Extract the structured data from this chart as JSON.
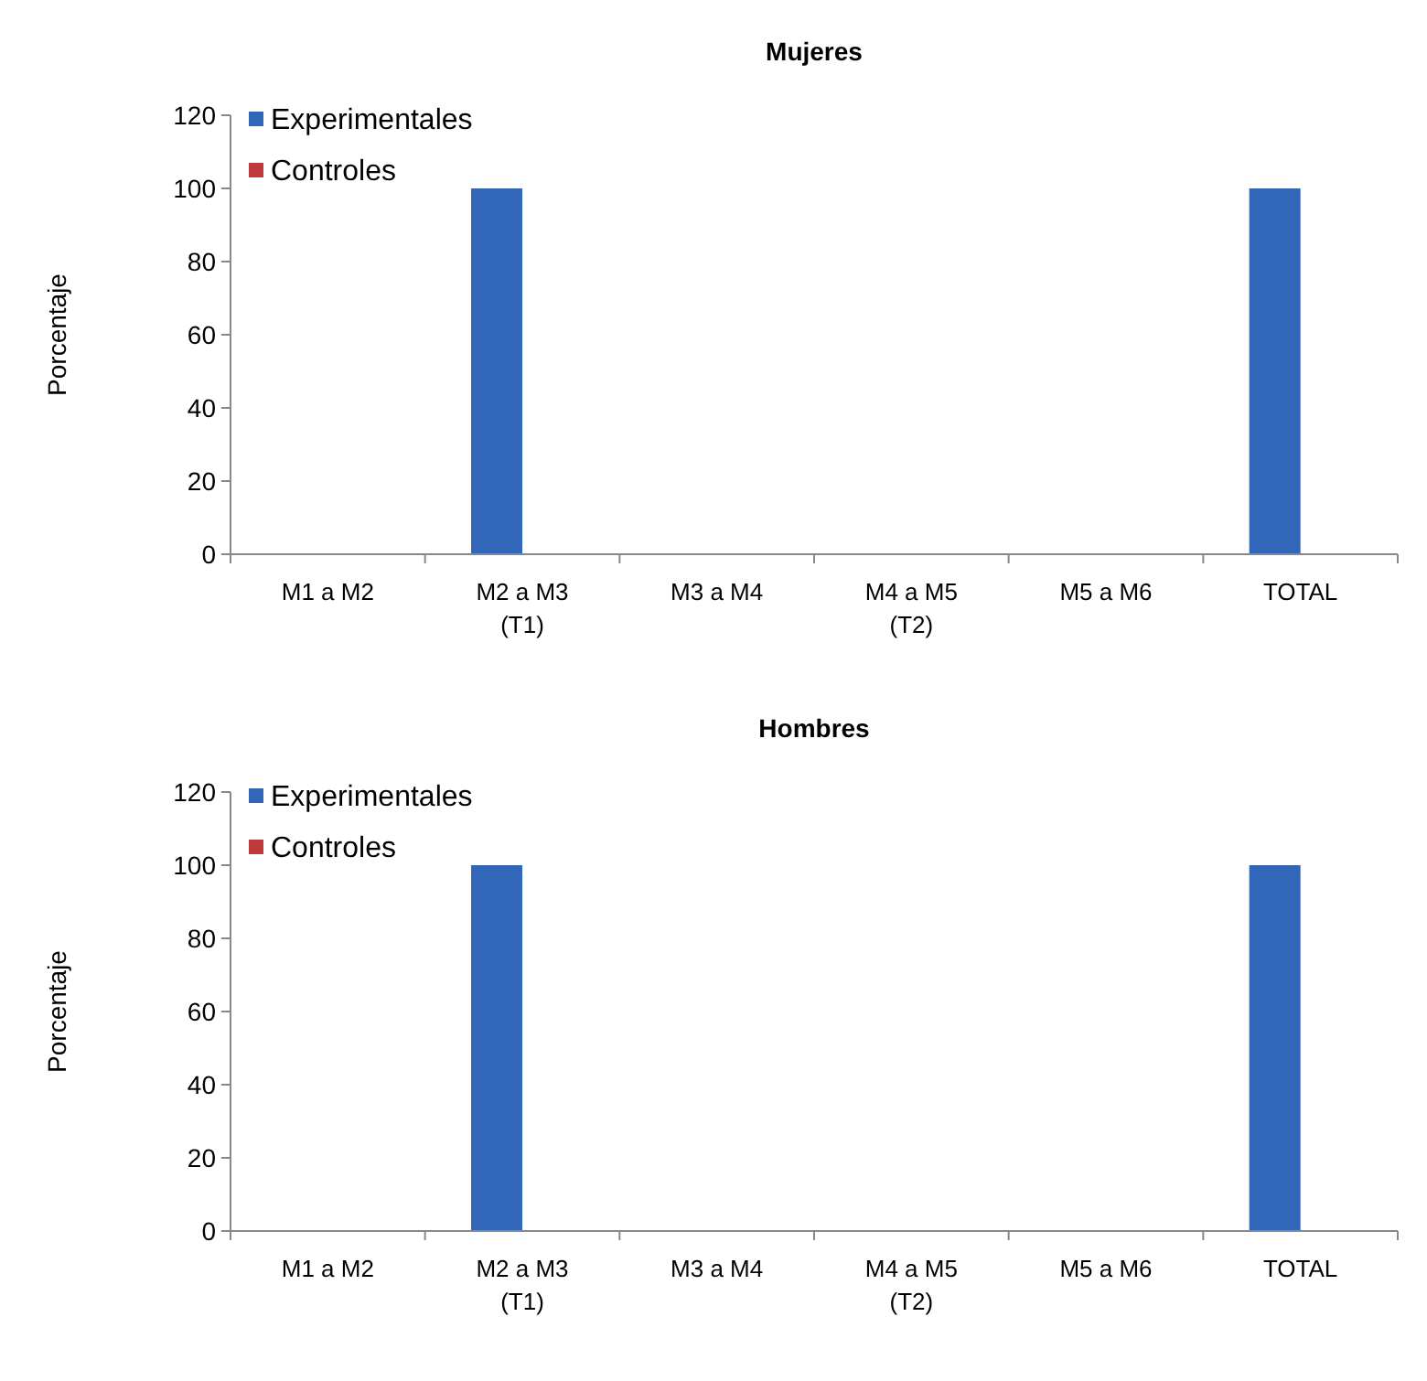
{
  "chart_data": [
    {
      "type": "bar",
      "title": "Mujeres",
      "ylabel": "Porcentaje",
      "categories": [
        "M1 a M2",
        "M2 a M3\n(T1)",
        "M3 a M4",
        "M4 a M5\n(T2)",
        "M5 a M6",
        "TOTAL"
      ],
      "series": [
        {
          "name": "Experimentales",
          "color": "#3266b8",
          "values": [
            0,
            100,
            0,
            0,
            0,
            100
          ]
        },
        {
          "name": "Controles",
          "color": "#c0393b",
          "values": [
            0,
            0,
            0,
            0,
            0,
            0
          ]
        }
      ],
      "ylim": [
        0,
        120
      ],
      "yticks": [
        0,
        20,
        40,
        60,
        80,
        100,
        120
      ],
      "legend": "top left",
      "grid": false
    },
    {
      "type": "bar",
      "title": "Hombres",
      "ylabel": "Porcentaje",
      "categories": [
        "M1 a M2",
        "M2 a M3\n(T1)",
        "M3 a M4",
        "M4 a M5\n(T2)",
        "M5 a M6",
        "TOTAL"
      ],
      "series": [
        {
          "name": "Experimentales",
          "color": "#3266b8",
          "values": [
            0,
            100,
            0,
            0,
            0,
            100
          ]
        },
        {
          "name": "Controles",
          "color": "#c0393b",
          "values": [
            0,
            0,
            0,
            0,
            0,
            0
          ]
        }
      ],
      "ylim": [
        0,
        120
      ],
      "yticks": [
        0,
        20,
        40,
        60,
        80,
        100,
        120
      ],
      "legend": "top left",
      "grid": false
    }
  ]
}
